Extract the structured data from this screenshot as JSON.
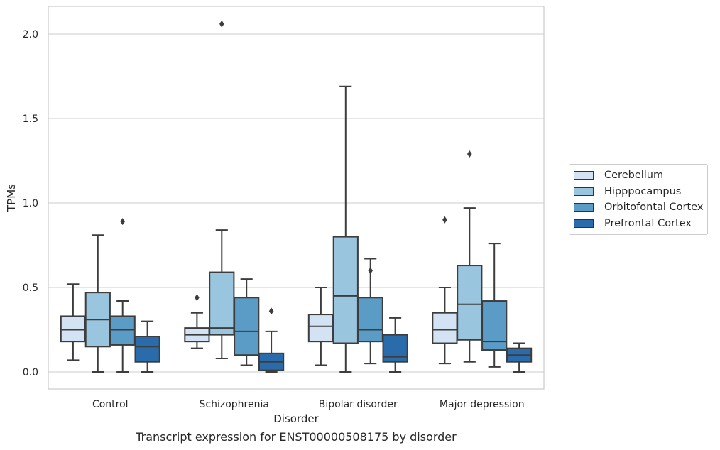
{
  "chart_data": {
    "type": "boxplot",
    "title": "",
    "caption": "Transcript expression for ENST00000508175 by disorder",
    "xlabel": "Disorder",
    "ylabel": "TPMs",
    "ylim": [
      -0.1,
      2.17
    ],
    "yticks": [
      0.0,
      0.5,
      1.0,
      1.5,
      2.0
    ],
    "ytick_labels": [
      "0.0",
      "0.5",
      "1.0",
      "1.5",
      "2.0"
    ],
    "grid": "horizontal",
    "legend_position": "right",
    "categories": [
      "Control",
      "Schizophrenia",
      "Bipolar disorder",
      "Major depression"
    ],
    "series": [
      {
        "name": "Cerebellum",
        "color": "#d3e3f3",
        "boxes": [
          {
            "whislo": 0.07,
            "q1": 0.18,
            "med": 0.25,
            "q3": 0.33,
            "whishi": 0.52,
            "fliers": []
          },
          {
            "whislo": 0.14,
            "q1": 0.18,
            "med": 0.22,
            "q3": 0.26,
            "whishi": 0.35,
            "fliers": [
              0.44
            ]
          },
          {
            "whislo": 0.04,
            "q1": 0.18,
            "med": 0.27,
            "q3": 0.34,
            "whishi": 0.5,
            "fliers": []
          },
          {
            "whislo": 0.05,
            "q1": 0.17,
            "med": 0.25,
            "q3": 0.35,
            "whishi": 0.5,
            "fliers": [
              0.9
            ]
          }
        ]
      },
      {
        "name": "Hipppocampus",
        "color": "#9ac5df",
        "boxes": [
          {
            "whislo": 0.0,
            "q1": 0.15,
            "med": 0.31,
            "q3": 0.47,
            "whishi": 0.81,
            "fliers": []
          },
          {
            "whislo": 0.08,
            "q1": 0.22,
            "med": 0.26,
            "q3": 0.59,
            "whishi": 0.84,
            "fliers": [
              2.06
            ]
          },
          {
            "whislo": 0.0,
            "q1": 0.17,
            "med": 0.45,
            "q3": 0.8,
            "whishi": 1.69,
            "fliers": []
          },
          {
            "whislo": 0.06,
            "q1": 0.19,
            "med": 0.4,
            "q3": 0.63,
            "whishi": 0.97,
            "fliers": [
              1.29
            ]
          }
        ]
      },
      {
        "name": "Orbitofontal Cortex",
        "color": "#5b9cc6",
        "boxes": [
          {
            "whislo": 0.0,
            "q1": 0.16,
            "med": 0.25,
            "q3": 0.33,
            "whishi": 0.42,
            "fliers": [
              0.89
            ]
          },
          {
            "whislo": 0.04,
            "q1": 0.1,
            "med": 0.24,
            "q3": 0.44,
            "whishi": 0.55,
            "fliers": []
          },
          {
            "whislo": 0.05,
            "q1": 0.18,
            "med": 0.25,
            "q3": 0.44,
            "whishi": 0.67,
            "fliers": [
              0.6
            ]
          },
          {
            "whislo": 0.03,
            "q1": 0.13,
            "med": 0.18,
            "q3": 0.42,
            "whishi": 0.76,
            "fliers": []
          }
        ]
      },
      {
        "name": "Prefrontal Cortex",
        "color": "#2a6cab",
        "boxes": [
          {
            "whislo": 0.0,
            "q1": 0.06,
            "med": 0.15,
            "q3": 0.21,
            "whishi": 0.3,
            "fliers": []
          },
          {
            "whislo": 0.0,
            "q1": 0.01,
            "med": 0.06,
            "q3": 0.11,
            "whishi": 0.24,
            "fliers": [
              0.36
            ]
          },
          {
            "whislo": 0.0,
            "q1": 0.06,
            "med": 0.09,
            "q3": 0.22,
            "whishi": 0.32,
            "fliers": []
          },
          {
            "whislo": 0.0,
            "q1": 0.06,
            "med": 0.1,
            "q3": 0.14,
            "whishi": 0.17,
            "fliers": []
          }
        ]
      }
    ]
  }
}
